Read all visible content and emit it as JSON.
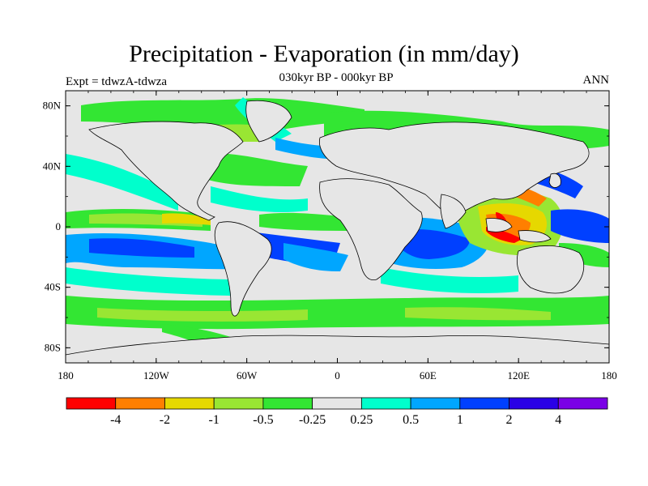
{
  "header": {
    "title": "Precipitation - Evaporation (in mm/day)",
    "subtitle": "030kyr BP - 000kyr BP",
    "left_label": "Expt = tdwzA-tdwza",
    "right_label": "ANN"
  },
  "map": {
    "projection": "cylindrical equidistant",
    "background_color": "#e6e6e6",
    "coastline_color": "#000000",
    "lon_range": [
      -180,
      180
    ],
    "lat_range": [
      -90,
      90
    ],
    "lon_ticks": [
      {
        "value": -180,
        "label": "180"
      },
      {
        "value": -120,
        "label": "120W"
      },
      {
        "value": -60,
        "label": "60W"
      },
      {
        "value": 0,
        "label": "0"
      },
      {
        "value": 60,
        "label": "60E"
      },
      {
        "value": 120,
        "label": "120E"
      },
      {
        "value": 180,
        "label": "180"
      }
    ],
    "lat_ticks": [
      {
        "value": 80,
        "label": "80N"
      },
      {
        "value": 40,
        "label": "40N"
      },
      {
        "value": 0,
        "label": "0"
      },
      {
        "value": -40,
        "label": "40S"
      },
      {
        "value": -80,
        "label": "80S"
      }
    ]
  },
  "colorbar": {
    "colors": [
      "#ff0000",
      "#ff7f00",
      "#e6d800",
      "#99e633",
      "#33e633",
      "#e6e6e6",
      "#00ffcc",
      "#00a6ff",
      "#0040ff",
      "#2a00e6",
      "#7a00e6"
    ],
    "level_labels": [
      "-4",
      "-2",
      "-1",
      "-0.5",
      "-0.25",
      "0.25",
      "0.5",
      "1",
      "2",
      "4"
    ]
  }
}
